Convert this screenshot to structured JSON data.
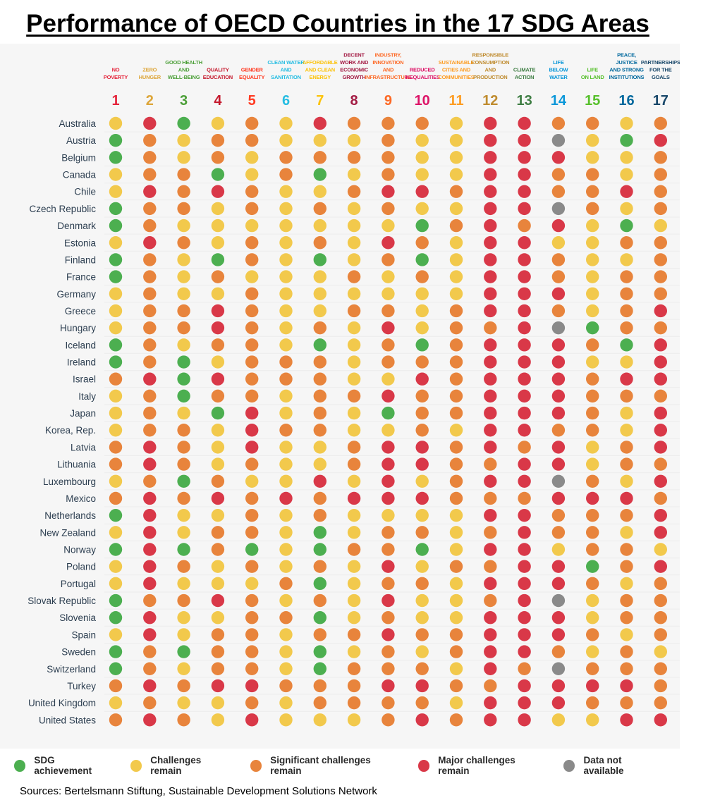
{
  "title": "Performance of OECD Countries in the 17 SDG Areas",
  "source": "Sources: Bertelsmann Stiftung, Sustainable Development Solutions Network",
  "status_colors": {
    "green": "#4caf50",
    "yellow": "#f2c94c",
    "orange": "#e8843c",
    "red": "#d93848",
    "gray": "#8a8a8a"
  },
  "legend": [
    {
      "key": "green",
      "label": "SDG achievement"
    },
    {
      "key": "yellow",
      "label": "Challenges remain"
    },
    {
      "key": "orange",
      "label": "Significant challenges remain"
    },
    {
      "key": "red",
      "label": "Major challenges remain"
    },
    {
      "key": "gray",
      "label": "Data not available"
    }
  ],
  "chart_data": {
    "type": "table",
    "title": "Performance of OECD Countries in the 17 SDG Areas",
    "goals": [
      {
        "number": "1",
        "label": [
          "NO",
          "POVERTY"
        ],
        "color": "#e5243b"
      },
      {
        "number": "2",
        "label": [
          "ZERO",
          "HUNGER"
        ],
        "color": "#dda63a"
      },
      {
        "number": "3",
        "label": [
          "GOOD HEALTH",
          "AND",
          "WELL-BEING"
        ],
        "color": "#4c9f38"
      },
      {
        "number": "4",
        "label": [
          "QUALITY",
          "EDUCATION"
        ],
        "color": "#c5192d"
      },
      {
        "number": "5",
        "label": [
          "GENDER",
          "EQUALITY"
        ],
        "color": "#ff3a21"
      },
      {
        "number": "6",
        "label": [
          "CLEAN WATER",
          "AND",
          "SANITATION"
        ],
        "color": "#26bde2"
      },
      {
        "number": "7",
        "label": [
          "AFFORDABLE",
          "AND CLEAN",
          "ENERGY"
        ],
        "color": "#fcc30b"
      },
      {
        "number": "8",
        "label": [
          "DECENT",
          "WORK AND",
          "ECONOMIC",
          "GROWTH"
        ],
        "color": "#a21942"
      },
      {
        "number": "9",
        "label": [
          "INDUSTRY,",
          "INNOVATION",
          "AND",
          "INFRASTRUCTURE"
        ],
        "color": "#fd6925"
      },
      {
        "number": "10",
        "label": [
          "REDUCED",
          "INEQUALITIES"
        ],
        "color": "#dd1367"
      },
      {
        "number": "11",
        "label": [
          "SUSTAINABLE",
          "CITIES AND",
          "COMMUNITIES"
        ],
        "color": "#fd9d24"
      },
      {
        "number": "12",
        "label": [
          "RESPONSIBLE",
          "CONSUMPTION",
          "AND",
          "PRODUCTION"
        ],
        "color": "#bf8b2e"
      },
      {
        "number": "13",
        "label": [
          "CLIMATE",
          "ACTION"
        ],
        "color": "#3f7e44"
      },
      {
        "number": "14",
        "label": [
          "LIFE",
          "BELOW",
          "WATER"
        ],
        "color": "#0a97d9"
      },
      {
        "number": "15",
        "label": [
          "LIFE",
          "ON LAND"
        ],
        "color": "#56c02b"
      },
      {
        "number": "16",
        "label": [
          "PEACE,",
          "JUSTICE",
          "AND STRONG",
          "INSTITUTIONS"
        ],
        "color": "#00689d"
      },
      {
        "number": "17",
        "label": [
          "PARTNERSHIPS",
          "FOR THE",
          "GOALS"
        ],
        "color": "#19486a"
      }
    ],
    "countries": [
      {
        "name": "Australia",
        "status": [
          "Y",
          "R",
          "G",
          "Y",
          "O",
          "Y",
          "R",
          "O",
          "O",
          "O",
          "Y",
          "R",
          "R",
          "O",
          "O",
          "Y",
          "O"
        ]
      },
      {
        "name": "Austria",
        "status": [
          "G",
          "O",
          "Y",
          "O",
          "O",
          "Y",
          "Y",
          "Y",
          "O",
          "Y",
          "Y",
          "R",
          "R",
          "X",
          "Y",
          "G",
          "R"
        ]
      },
      {
        "name": "Belgium",
        "status": [
          "G",
          "O",
          "Y",
          "O",
          "Y",
          "O",
          "O",
          "O",
          "O",
          "Y",
          "Y",
          "R",
          "R",
          "R",
          "Y",
          "Y",
          "O"
        ]
      },
      {
        "name": "Canada",
        "status": [
          "Y",
          "O",
          "O",
          "G",
          "Y",
          "O",
          "G",
          "Y",
          "O",
          "Y",
          "Y",
          "R",
          "R",
          "O",
          "O",
          "Y",
          "O"
        ]
      },
      {
        "name": "Chile",
        "status": [
          "Y",
          "R",
          "O",
          "R",
          "O",
          "Y",
          "Y",
          "O",
          "R",
          "R",
          "O",
          "R",
          "R",
          "O",
          "O",
          "R",
          "O"
        ]
      },
      {
        "name": "Czech Republic",
        "status": [
          "G",
          "O",
          "O",
          "Y",
          "O",
          "Y",
          "O",
          "Y",
          "O",
          "Y",
          "Y",
          "R",
          "R",
          "X",
          "O",
          "Y",
          "O"
        ]
      },
      {
        "name": "Denmark",
        "status": [
          "G",
          "O",
          "Y",
          "Y",
          "Y",
          "Y",
          "Y",
          "Y",
          "Y",
          "G",
          "O",
          "R",
          "O",
          "R",
          "Y",
          "G",
          "Y"
        ]
      },
      {
        "name": "Estonia",
        "status": [
          "Y",
          "R",
          "O",
          "Y",
          "O",
          "Y",
          "O",
          "Y",
          "R",
          "O",
          "Y",
          "R",
          "R",
          "Y",
          "Y",
          "O",
          "O"
        ]
      },
      {
        "name": "Finland",
        "status": [
          "G",
          "O",
          "Y",
          "G",
          "O",
          "Y",
          "G",
          "Y",
          "O",
          "G",
          "Y",
          "R",
          "R",
          "O",
          "Y",
          "Y",
          "O"
        ]
      },
      {
        "name": "France",
        "status": [
          "G",
          "O",
          "Y",
          "O",
          "Y",
          "Y",
          "Y",
          "O",
          "Y",
          "O",
          "Y",
          "R",
          "R",
          "O",
          "Y",
          "O",
          "O"
        ]
      },
      {
        "name": "Germany",
        "status": [
          "Y",
          "O",
          "Y",
          "Y",
          "O",
          "Y",
          "Y",
          "Y",
          "Y",
          "Y",
          "Y",
          "R",
          "R",
          "R",
          "Y",
          "O",
          "O"
        ]
      },
      {
        "name": "Greece",
        "status": [
          "Y",
          "O",
          "O",
          "R",
          "O",
          "Y",
          "Y",
          "O",
          "O",
          "Y",
          "O",
          "R",
          "R",
          "O",
          "Y",
          "O",
          "R"
        ]
      },
      {
        "name": "Hungary",
        "status": [
          "Y",
          "O",
          "O",
          "R",
          "O",
          "Y",
          "O",
          "Y",
          "R",
          "Y",
          "O",
          "O",
          "R",
          "X",
          "G",
          "O",
          "O"
        ]
      },
      {
        "name": "Iceland",
        "status": [
          "G",
          "O",
          "Y",
          "O",
          "O",
          "Y",
          "G",
          "Y",
          "O",
          "G",
          "O",
          "R",
          "R",
          "R",
          "O",
          "G",
          "R"
        ]
      },
      {
        "name": "Ireland",
        "status": [
          "G",
          "O",
          "G",
          "Y",
          "O",
          "O",
          "O",
          "Y",
          "O",
          "O",
          "O",
          "R",
          "R",
          "R",
          "Y",
          "Y",
          "R"
        ]
      },
      {
        "name": "Israel",
        "status": [
          "O",
          "R",
          "G",
          "R",
          "O",
          "O",
          "O",
          "Y",
          "Y",
          "R",
          "O",
          "R",
          "R",
          "R",
          "O",
          "R",
          "R"
        ]
      },
      {
        "name": "Italy",
        "status": [
          "Y",
          "O",
          "G",
          "O",
          "O",
          "Y",
          "O",
          "O",
          "R",
          "O",
          "O",
          "R",
          "R",
          "R",
          "O",
          "O",
          "O"
        ]
      },
      {
        "name": "Japan",
        "status": [
          "Y",
          "O",
          "Y",
          "G",
          "R",
          "Y",
          "O",
          "Y",
          "G",
          "O",
          "O",
          "R",
          "R",
          "R",
          "O",
          "Y",
          "R"
        ]
      },
      {
        "name": "Korea, Rep.",
        "status": [
          "Y",
          "O",
          "O",
          "Y",
          "R",
          "O",
          "O",
          "Y",
          "Y",
          "O",
          "Y",
          "R",
          "R",
          "O",
          "O",
          "Y",
          "R"
        ]
      },
      {
        "name": "Latvia",
        "status": [
          "O",
          "R",
          "O",
          "Y",
          "R",
          "Y",
          "Y",
          "O",
          "R",
          "R",
          "O",
          "R",
          "O",
          "R",
          "Y",
          "O",
          "R"
        ]
      },
      {
        "name": "Lithuania",
        "status": [
          "O",
          "R",
          "O",
          "Y",
          "O",
          "Y",
          "Y",
          "O",
          "R",
          "R",
          "O",
          "O",
          "R",
          "R",
          "Y",
          "O",
          "O"
        ]
      },
      {
        "name": "Luxembourg",
        "status": [
          "Y",
          "O",
          "G",
          "O",
          "Y",
          "Y",
          "R",
          "Y",
          "R",
          "Y",
          "O",
          "R",
          "R",
          "X",
          "O",
          "Y",
          "R"
        ]
      },
      {
        "name": "Mexico",
        "status": [
          "O",
          "R",
          "O",
          "R",
          "O",
          "R",
          "O",
          "R",
          "R",
          "R",
          "O",
          "O",
          "O",
          "R",
          "R",
          "R",
          "O"
        ]
      },
      {
        "name": "Netherlands",
        "status": [
          "G",
          "R",
          "Y",
          "Y",
          "O",
          "Y",
          "O",
          "Y",
          "Y",
          "Y",
          "Y",
          "R",
          "R",
          "O",
          "O",
          "O",
          "R"
        ]
      },
      {
        "name": "New Zealand",
        "status": [
          "Y",
          "R",
          "Y",
          "O",
          "O",
          "Y",
          "G",
          "Y",
          "O",
          "O",
          "Y",
          "O",
          "R",
          "O",
          "O",
          "Y",
          "R"
        ]
      },
      {
        "name": "Norway",
        "status": [
          "G",
          "R",
          "G",
          "O",
          "G",
          "Y",
          "G",
          "O",
          "O",
          "G",
          "Y",
          "R",
          "R",
          "Y",
          "O",
          "O",
          "Y"
        ]
      },
      {
        "name": "Poland",
        "status": [
          "Y",
          "R",
          "O",
          "Y",
          "O",
          "Y",
          "O",
          "Y",
          "R",
          "Y",
          "O",
          "O",
          "R",
          "R",
          "G",
          "O",
          "R"
        ]
      },
      {
        "name": "Portugal",
        "status": [
          "Y",
          "R",
          "Y",
          "Y",
          "Y",
          "O",
          "G",
          "Y",
          "O",
          "O",
          "Y",
          "R",
          "R",
          "R",
          "O",
          "Y",
          "O"
        ]
      },
      {
        "name": "Slovak Republic",
        "status": [
          "G",
          "O",
          "O",
          "R",
          "O",
          "Y",
          "O",
          "Y",
          "R",
          "Y",
          "Y",
          "O",
          "R",
          "X",
          "Y",
          "O",
          "O"
        ]
      },
      {
        "name": "Slovenia",
        "status": [
          "G",
          "R",
          "Y",
          "Y",
          "O",
          "O",
          "G",
          "Y",
          "O",
          "Y",
          "Y",
          "R",
          "R",
          "R",
          "Y",
          "O",
          "O"
        ]
      },
      {
        "name": "Spain",
        "status": [
          "Y",
          "R",
          "Y",
          "O",
          "O",
          "Y",
          "O",
          "O",
          "R",
          "O",
          "O",
          "R",
          "R",
          "R",
          "O",
          "Y",
          "O"
        ]
      },
      {
        "name": "Sweden",
        "status": [
          "G",
          "O",
          "G",
          "O",
          "O",
          "Y",
          "G",
          "Y",
          "O",
          "Y",
          "O",
          "R",
          "R",
          "O",
          "Y",
          "O",
          "Y"
        ]
      },
      {
        "name": "Switzerland",
        "status": [
          "G",
          "O",
          "Y",
          "O",
          "O",
          "Y",
          "G",
          "O",
          "O",
          "O",
          "Y",
          "R",
          "O",
          "X",
          "O",
          "O",
          "O"
        ]
      },
      {
        "name": "Turkey",
        "status": [
          "O",
          "R",
          "O",
          "R",
          "R",
          "O",
          "O",
          "O",
          "R",
          "R",
          "O",
          "O",
          "R",
          "R",
          "R",
          "R",
          "O"
        ]
      },
      {
        "name": "United Kingdom",
        "status": [
          "Y",
          "O",
          "Y",
          "Y",
          "O",
          "Y",
          "O",
          "O",
          "O",
          "O",
          "Y",
          "R",
          "R",
          "R",
          "O",
          "O",
          "O"
        ]
      },
      {
        "name": "United States",
        "status": [
          "O",
          "R",
          "O",
          "Y",
          "R",
          "Y",
          "Y",
          "Y",
          "O",
          "R",
          "O",
          "R",
          "R",
          "Y",
          "Y",
          "R",
          "R"
        ]
      }
    ],
    "status_legend": {
      "G": "SDG achievement",
      "Y": "Challenges remain",
      "O": "Significant challenges remain",
      "R": "Major challenges remain",
      "X": "Data not available"
    }
  }
}
